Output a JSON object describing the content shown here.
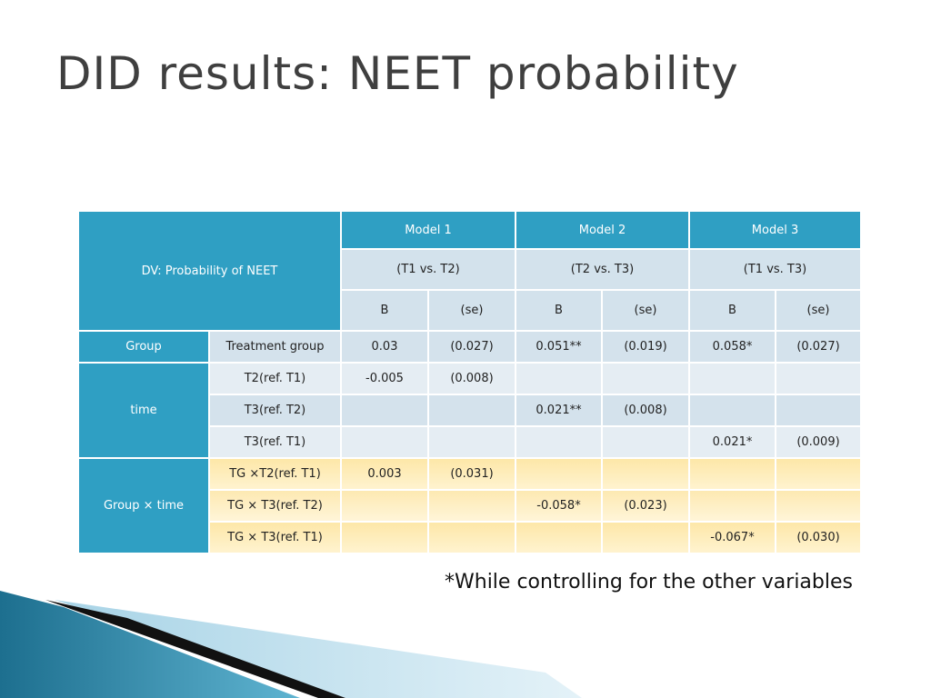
{
  "title": "DID results: NEET probability",
  "table": {
    "header": {
      "dv": "DV: Probability of NEET",
      "models": [
        "Model 1",
        "Model 2",
        "Model 3"
      ],
      "comparisons": [
        "(T1 vs. T2)",
        "(T2 vs. T3)",
        "(T1 vs. T3)"
      ],
      "stats": [
        "B",
        "(se)",
        "B",
        "(se)",
        "B",
        "(se)"
      ]
    },
    "groups": [
      {
        "label": "Group",
        "rows": [
          {
            "label": "Treatment group",
            "cells": [
              "0.03",
              "(0.027)",
              "0.051**",
              "(0.019)",
              "0.058*",
              "(0.027)"
            ]
          }
        ]
      },
      {
        "label": "time",
        "rows": [
          {
            "label": "T2(ref. T1)",
            "cells": [
              "-0.005",
              "(0.008)",
              null,
              null,
              null,
              null
            ]
          },
          {
            "label": "T3(ref. T2)",
            "cells": [
              null,
              null,
              "0.021**",
              "(0.008)",
              null,
              null
            ]
          },
          {
            "label": "T3(ref. T1)",
            "cells": [
              null,
              null,
              null,
              null,
              "0.021*",
              "(0.009)"
            ]
          }
        ]
      },
      {
        "label": "Group × time",
        "rows": [
          {
            "label": "TG ×T2(ref. T1)",
            "cells": [
              "0.003",
              "(0.031)",
              null,
              null,
              null,
              null
            ]
          },
          {
            "label": "TG × T3(ref. T2)",
            "cells": [
              null,
              null,
              "-0.058*",
              "(0.023)",
              null,
              null
            ]
          },
          {
            "label": "TG × T3(ref. T1)",
            "cells": [
              null,
              null,
              null,
              null,
              "-0.067*",
              "(0.030)"
            ]
          }
        ]
      }
    ]
  },
  "footnote": "*While controlling for the other variables"
}
